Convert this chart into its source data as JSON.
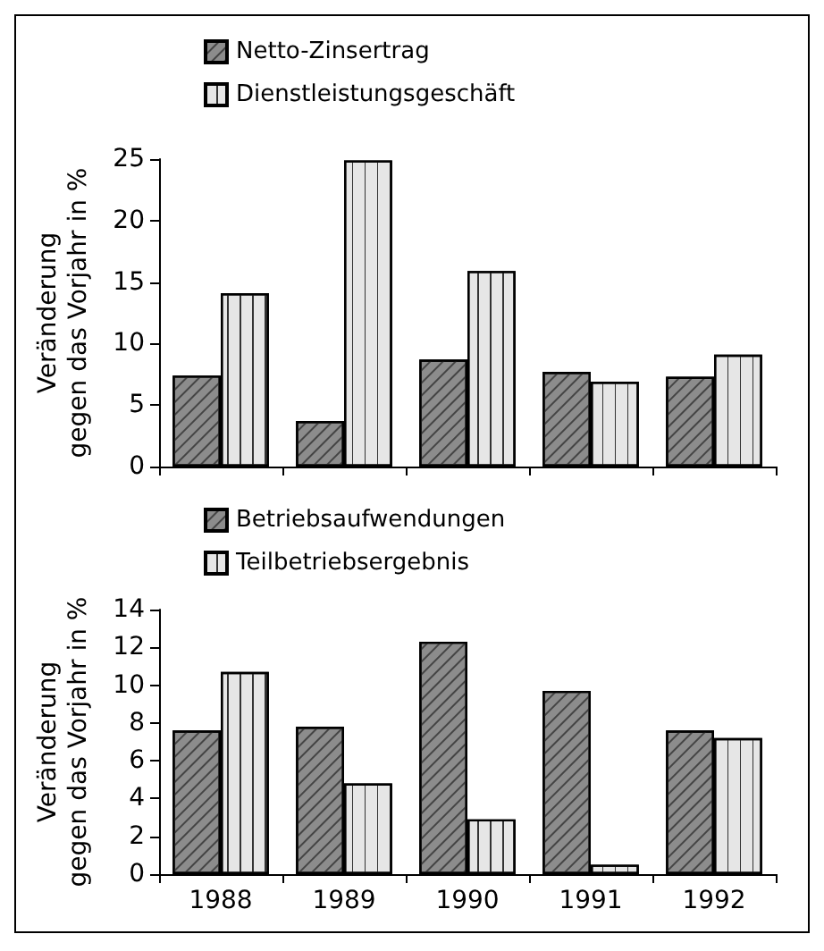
{
  "chart_data": [
    {
      "type": "bar",
      "categories": [
        "1988",
        "1989",
        "1990",
        "1991",
        "1992"
      ],
      "ylabel": "Veränderung\ngegen das Vorjahr in %",
      "ylim": [
        0,
        25
      ],
      "yticks": [
        0,
        5,
        10,
        15,
        20,
        25
      ],
      "tick_labels": "y",
      "legend": "top left",
      "grid": false,
      "series": [
        {
          "name": "Netto-Zinsertrag",
          "color": "#8c8c8c",
          "values": [
            7.4,
            3.7,
            8.7,
            7.7,
            7.3
          ]
        },
        {
          "name": "Dienstleistungsgeschäft",
          "color": "#e6e6e6",
          "values": [
            14.1,
            24.9,
            15.9,
            6.9,
            9.1
          ]
        }
      ]
    },
    {
      "type": "bar",
      "categories": [
        "1988",
        "1989",
        "1990",
        "1991",
        "1992"
      ],
      "ylabel": "Veränderung\ngegen das Vorjahr in %",
      "ylim": [
        0,
        14
      ],
      "yticks": [
        0,
        2,
        4,
        6,
        8,
        10,
        12,
        14
      ],
      "legend": "top left",
      "grid": false,
      "series": [
        {
          "name": "Betriebsaufwendungen",
          "color": "#8c8c8c",
          "values": [
            7.6,
            7.8,
            12.3,
            9.7,
            7.6
          ]
        },
        {
          "name": "Teilbetriebsergebnis",
          "color": "#e6e6e6",
          "values": [
            10.7,
            4.8,
            2.9,
            0.5,
            7.2
          ]
        }
      ]
    }
  ]
}
